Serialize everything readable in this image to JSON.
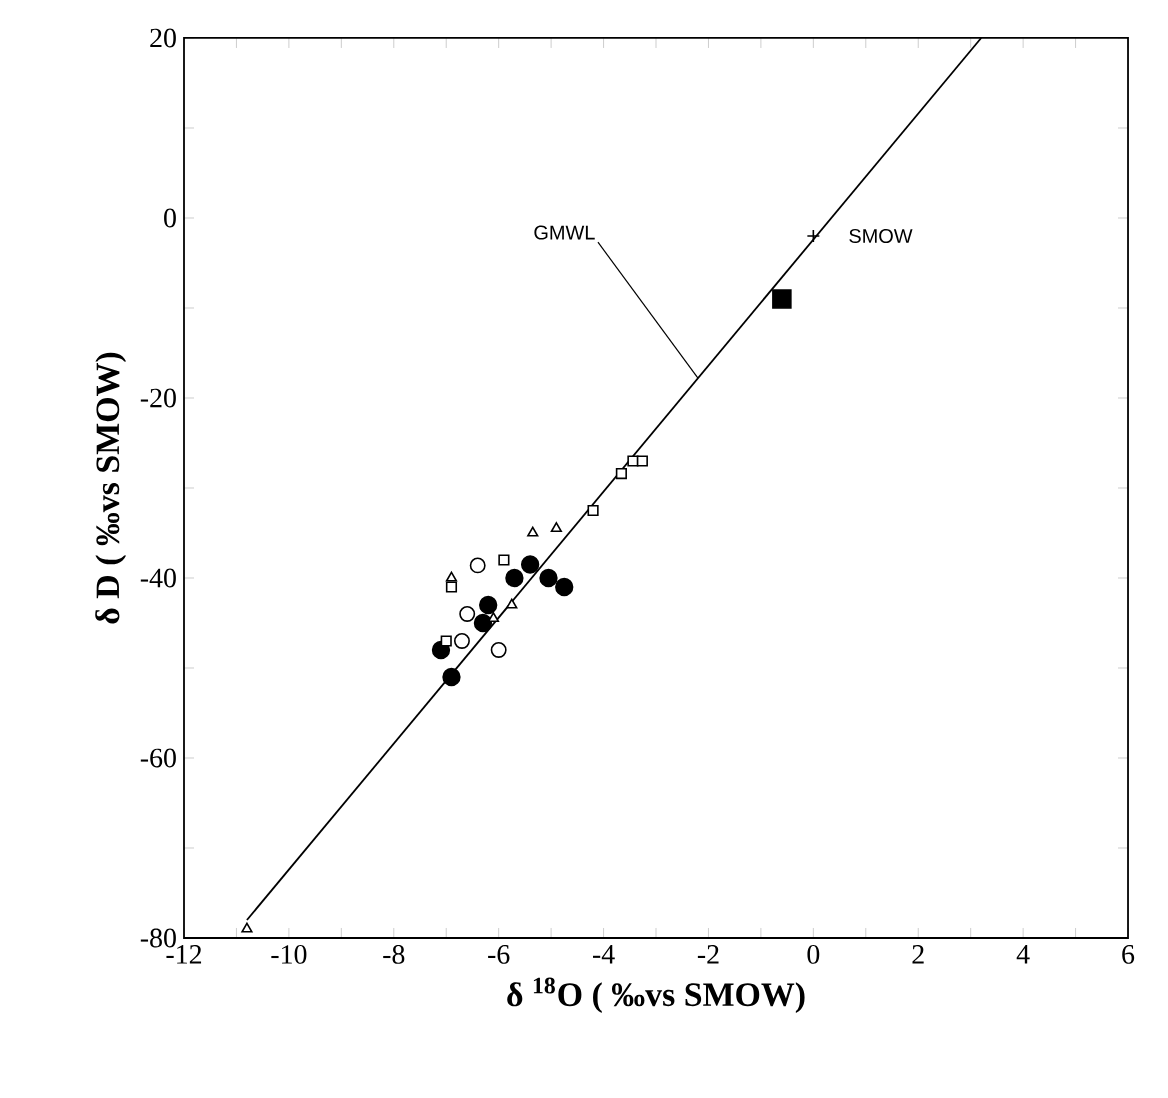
{
  "chart_data": {
    "type": "scatter",
    "xlabel": "δ $^{18}$O ( ‰vs SMOW)",
    "ylabel": "δ D ( ‰vs SMOW)",
    "xlim": [
      -12,
      6
    ],
    "ylim": [
      -80,
      20
    ],
    "xticks": [
      -12,
      {
        "value": -11,
        "label": null
      },
      -10,
      {
        "value": -9,
        "label": null
      },
      -8,
      {
        "value": -7,
        "label": null
      },
      -6,
      {
        "value": -5,
        "label": null
      },
      -4,
      {
        "value": -3,
        "label": null
      },
      -2,
      {
        "value": -1,
        "label": null
      },
      0,
      {
        "value": 1,
        "label": null
      },
      2,
      {
        "value": 3,
        "label": null
      },
      4,
      {
        "value": 5,
        "label": null
      },
      6
    ],
    "yticks": [
      -80,
      {
        "value": -70,
        "label": null
      },
      -60,
      {
        "value": -50,
        "label": null
      },
      -40,
      {
        "value": -30,
        "label": null
      },
      -20,
      {
        "value": -10,
        "label": null
      },
      0,
      {
        "value": 10,
        "label": null
      },
      20
    ],
    "annotations": [
      {
        "text": "GMWL",
        "x": -2.2,
        "y": -17.8
      }
    ],
    "series": [
      {
        "type": "line",
        "color": "#000000",
        "marker": "none",
        "x": [
          -10.8,
          3.2
        ],
        "values": [
          -78,
          20
        ]
      },
      {
        "color": "#000000",
        "marker": "circle",
        "x": [
          -6.9,
          -7.1,
          -6.2,
          -6.3,
          -5.7,
          -5.5,
          -5.4,
          -5.05,
          -4.75
        ],
        "values": [
          -51,
          -48,
          -43,
          -45,
          -40,
          null,
          -38.5,
          -40,
          -41
        ]
      },
      {
        "color": "#ffffff",
        "marker": "circle",
        "x": [
          -6.4,
          -6.6,
          -6.7,
          -6.0
        ],
        "values": [
          -38.6,
          -44,
          -47,
          -48
        ]
      },
      {
        "color": "#ffffff",
        "marker": "square",
        "x": [
          -3.66,
          -3.44,
          -3.26,
          -4.2,
          -5.9,
          -6.9,
          -7.0
        ],
        "values": [
          -28.4,
          -27,
          -27,
          -32.5,
          -38,
          -41,
          -47
        ]
      },
      {
        "color": "#ffffff",
        "marker": "triangle",
        "x": [
          -4.9,
          -5.35,
          -6.9,
          -5.75,
          -6.1,
          -10.8
        ],
        "values": [
          -34.5,
          -35,
          -40,
          -43,
          -44.5,
          -79
        ]
      },
      {
        "color": "#000000",
        "marker": "square",
        "x": [
          -0.6
        ],
        "values": [
          -9
        ]
      },
      {
        "name": "SMOW",
        "color": "#000000",
        "marker": "cross",
        "x": [
          0
        ],
        "values": [
          -2
        ]
      }
    ]
  }
}
